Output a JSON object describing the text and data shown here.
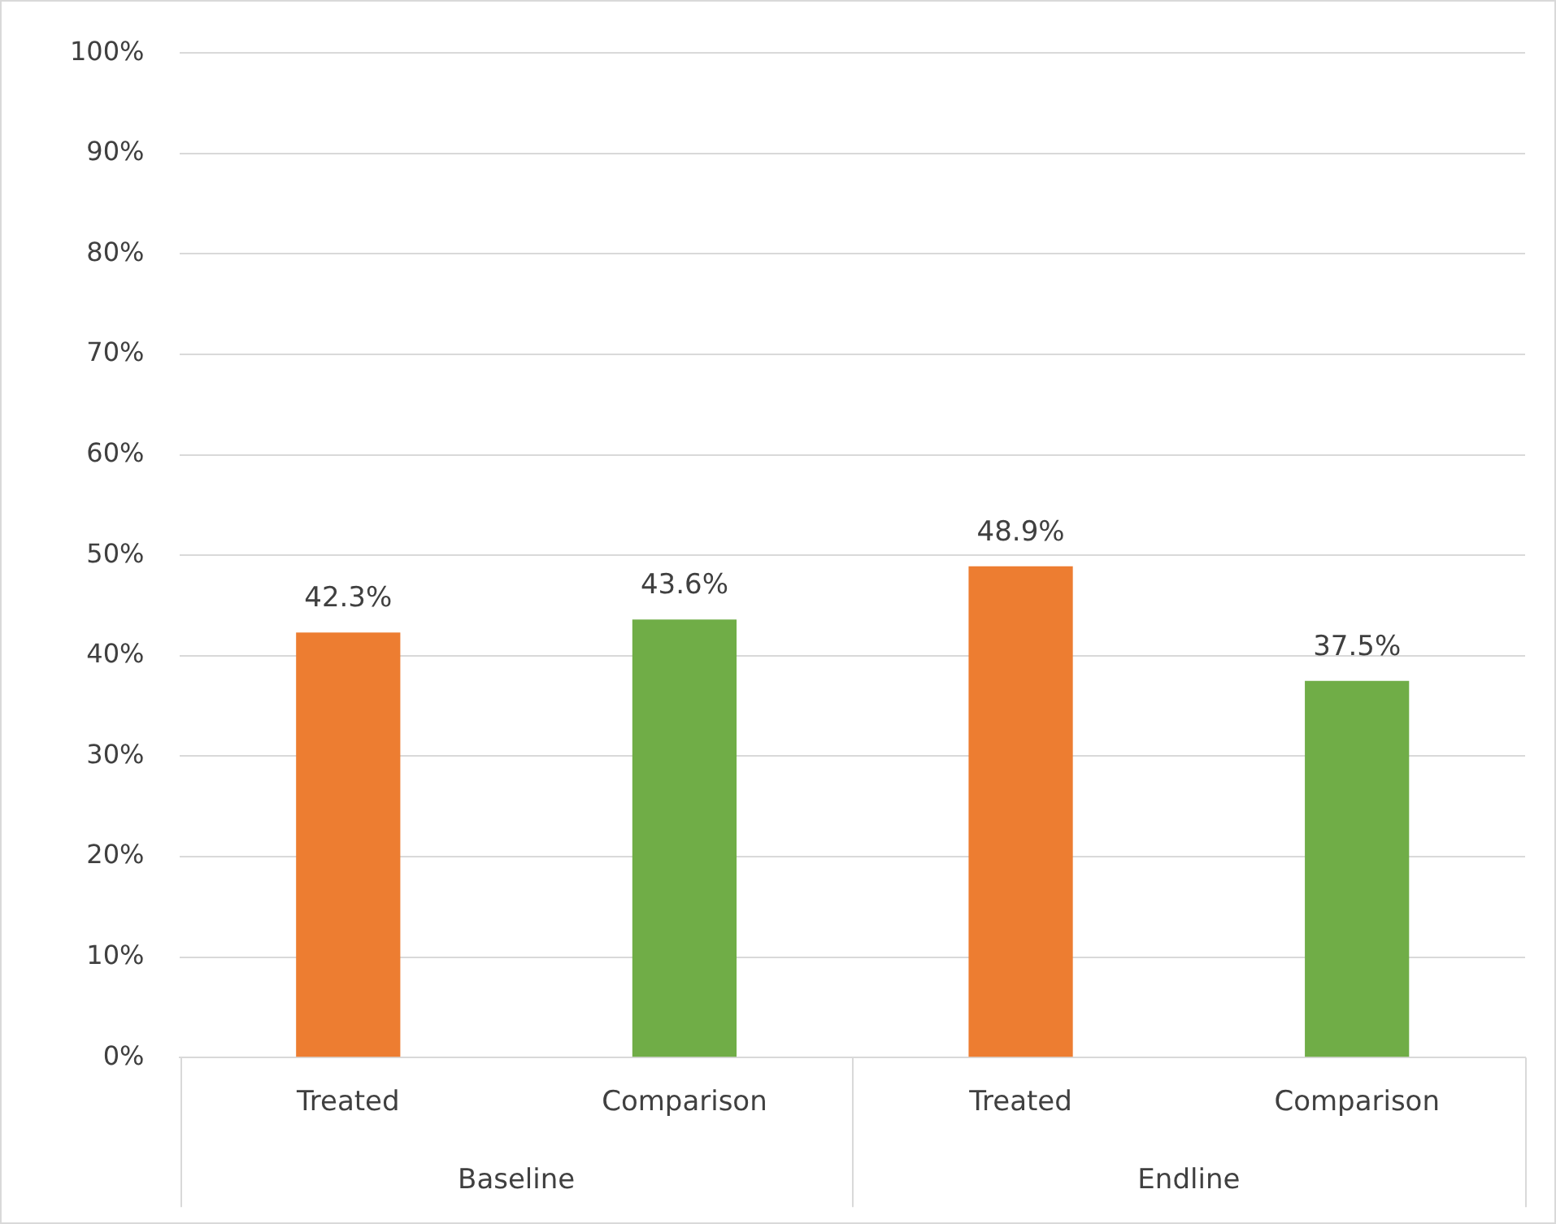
{
  "chart_data": {
    "type": "bar",
    "categories": [
      "Treated",
      "Comparison",
      "Treated",
      "Comparison"
    ],
    "values": [
      42.3,
      43.6,
      48.9,
      37.5
    ],
    "colors": [
      "#ed7d31",
      "#70ad47",
      "#ed7d31",
      "#70ad47"
    ],
    "value_labels": [
      "42.3%",
      "43.6%",
      "48.9%",
      "37.5%"
    ],
    "annotations": [
      "Baseline",
      "Endline"
    ],
    "ylim": [
      0,
      100
    ],
    "yticks": [
      {
        "value": 0,
        "label": "0%"
      },
      {
        "value": 10,
        "label": "10%"
      },
      {
        "value": 20,
        "label": "20%"
      },
      {
        "value": 30,
        "label": "30%"
      },
      {
        "value": 40,
        "label": "40%"
      },
      {
        "value": 50,
        "label": "50%"
      },
      {
        "value": 60,
        "label": "60%"
      },
      {
        "value": 70,
        "label": "70%"
      },
      {
        "value": 80,
        "label": "80%"
      },
      {
        "value": 90,
        "label": "90%"
      },
      {
        "value": 100,
        "label": "100%"
      }
    ],
    "grid": "y",
    "legend": false
  }
}
